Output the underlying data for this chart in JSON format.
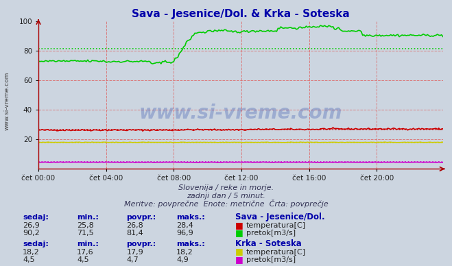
{
  "title": "Sava - Jesenice/Dol. & Krka - Soteska",
  "bg_color": "#ccd5e0",
  "plot_bg_color": "#ccd5e0",
  "xlim": [
    0,
    287
  ],
  "ylim": [
    0,
    100
  ],
  "yticks": [
    20,
    40,
    60,
    80,
    100
  ],
  "xtick_labels": [
    "čet 00:00",
    "čet 04:00",
    "čet 08:00",
    "čet 12:00",
    "čet 16:00",
    "čet 20:00"
  ],
  "xtick_positions": [
    0,
    48,
    96,
    144,
    192,
    240
  ],
  "sava_temp_color": "#cc0000",
  "sava_flow_color": "#00cc00",
  "krka_temp_color": "#cccc00",
  "krka_flow_color": "#cc00cc",
  "avg_sava_temp": 26.8,
  "avg_sava_flow": 81.4,
  "avg_krka_temp": 17.9,
  "avg_krka_flow": 4.7,
  "watermark": "www.si-vreme.com",
  "side_label": "www.si-vreme.com",
  "subtitle1": "Slovenija / reke in morje.",
  "subtitle2": "zadnji dan / 5 minut.",
  "subtitle3": "Meritve: povprečne  Enote: metrične  Črta: povprečje",
  "legend_title1": "Sava - Jesenice/Dol.",
  "legend_title2": "Krka - Soteska",
  "col_headers": [
    "sedaj:",
    "min.:",
    "povpr.:",
    "maks.:"
  ],
  "table_sava_temp": [
    "26,9",
    "25,8",
    "26,8",
    "28,4"
  ],
  "table_sava_flow": [
    "90,2",
    "71,5",
    "81,4",
    "96,9"
  ],
  "table_krka_temp": [
    "18,2",
    "17,6",
    "17,9",
    "18,2"
  ],
  "table_krka_flow": [
    "4,5",
    "4,5",
    "4,7",
    "4,9"
  ],
  "label_temp": "temperatura[C]",
  "label_flow": "pretok[m3/s]"
}
